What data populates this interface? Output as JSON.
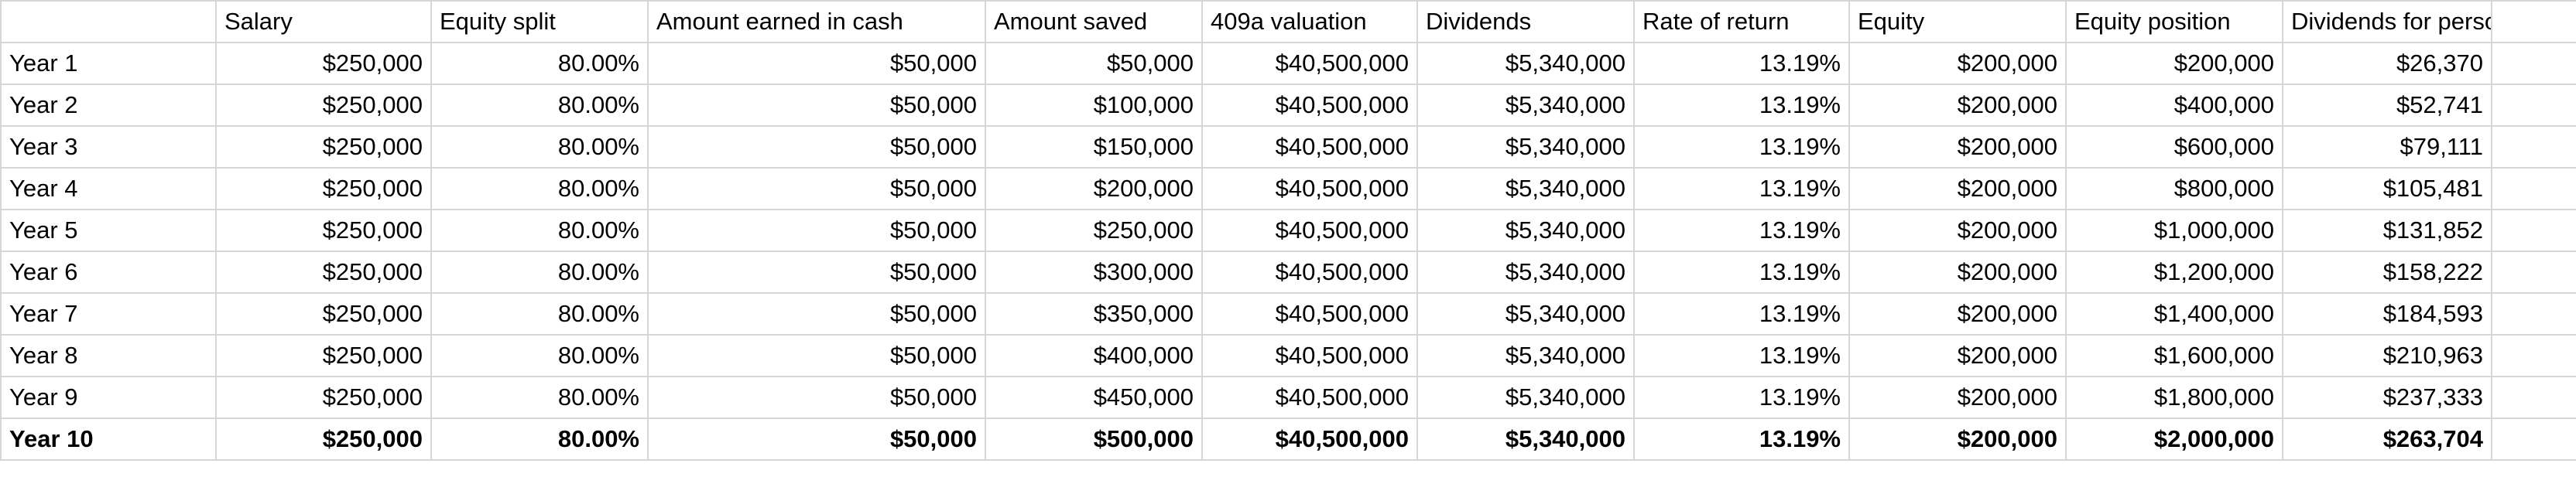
{
  "sheet": {
    "headers": [
      "",
      "Salary",
      "Equity split",
      "Amount earned in cash",
      "Amount saved",
      "409a valuation",
      "Dividends",
      "Rate of return",
      "Equity",
      "Equity position",
      "Dividends for person",
      ""
    ],
    "rows": [
      [
        "Year 1",
        "$250,000",
        "80.00%",
        "$50,000",
        "$50,000",
        "$40,500,000",
        "$5,340,000",
        "13.19%",
        "$200,000",
        "$200,000",
        "$26,370",
        ""
      ],
      [
        "Year 2",
        "$250,000",
        "80.00%",
        "$50,000",
        "$100,000",
        "$40,500,000",
        "$5,340,000",
        "13.19%",
        "$200,000",
        "$400,000",
        "$52,741",
        ""
      ],
      [
        "Year 3",
        "$250,000",
        "80.00%",
        "$50,000",
        "$150,000",
        "$40,500,000",
        "$5,340,000",
        "13.19%",
        "$200,000",
        "$600,000",
        "$79,111",
        ""
      ],
      [
        "Year 4",
        "$250,000",
        "80.00%",
        "$50,000",
        "$200,000",
        "$40,500,000",
        "$5,340,000",
        "13.19%",
        "$200,000",
        "$800,000",
        "$105,481",
        ""
      ],
      [
        "Year 5",
        "$250,000",
        "80.00%",
        "$50,000",
        "$250,000",
        "$40,500,000",
        "$5,340,000",
        "13.19%",
        "$200,000",
        "$1,000,000",
        "$131,852",
        ""
      ],
      [
        "Year 6",
        "$250,000",
        "80.00%",
        "$50,000",
        "$300,000",
        "$40,500,000",
        "$5,340,000",
        "13.19%",
        "$200,000",
        "$1,200,000",
        "$158,222",
        ""
      ],
      [
        "Year 7",
        "$250,000",
        "80.00%",
        "$50,000",
        "$350,000",
        "$40,500,000",
        "$5,340,000",
        "13.19%",
        "$200,000",
        "$1,400,000",
        "$184,593",
        ""
      ],
      [
        "Year 8",
        "$250,000",
        "80.00%",
        "$50,000",
        "$400,000",
        "$40,500,000",
        "$5,340,000",
        "13.19%",
        "$200,000",
        "$1,600,000",
        "$210,963",
        ""
      ],
      [
        "Year 9",
        "$250,000",
        "80.00%",
        "$50,000",
        "$450,000",
        "$40,500,000",
        "$5,340,000",
        "13.19%",
        "$200,000",
        "$1,800,000",
        "$237,333",
        ""
      ],
      [
        "Year 10",
        "$250,000",
        "80.00%",
        "$50,000",
        "$500,000",
        "$40,500,000",
        "$5,340,000",
        "13.19%",
        "$200,000",
        "$2,000,000",
        "$263,704",
        ""
      ]
    ],
    "bold_row_index": 9,
    "gridline_color": "#d6d6d6"
  }
}
